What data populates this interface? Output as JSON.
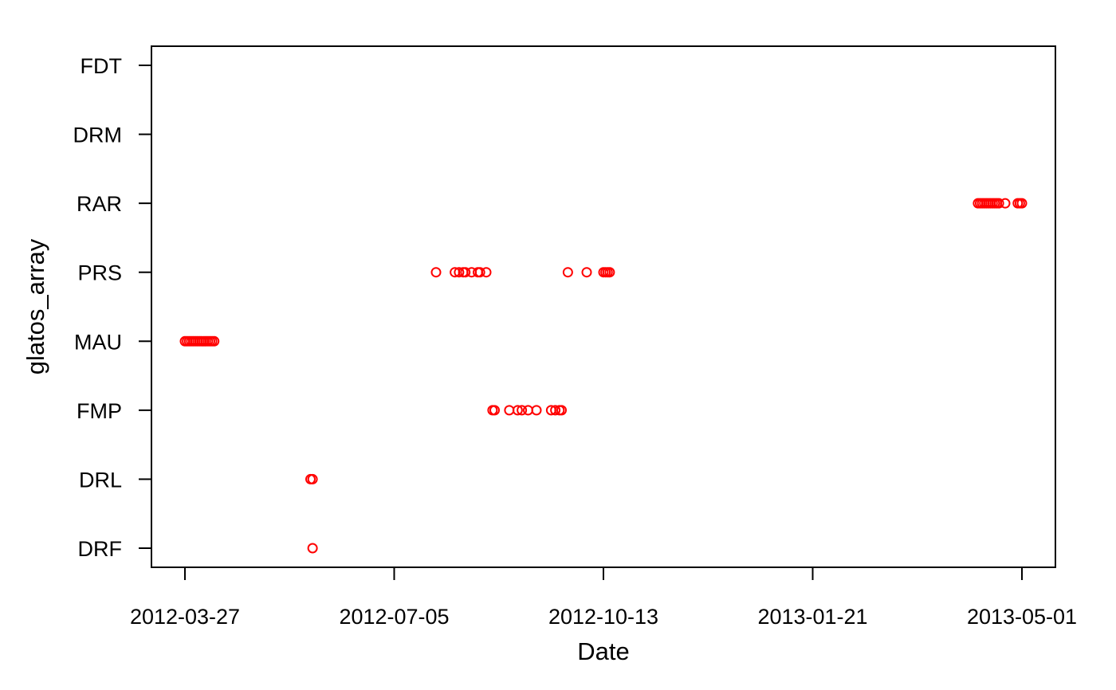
{
  "chart_data": {
    "type": "scatter",
    "xlabel": "Date",
    "ylabel": "glatos_array",
    "x_ticks": [
      "2012-03-27",
      "2012-07-05",
      "2012-10-13",
      "2013-01-21",
      "2013-05-01"
    ],
    "y_categories": [
      "DRF",
      "DRL",
      "FMP",
      "MAU",
      "PRS",
      "RAR",
      "DRM",
      "FDT"
    ],
    "xlim": [
      "2012-03-11",
      "2013-05-17"
    ],
    "marker_color": "#ff0000",
    "grid": false,
    "series": [
      {
        "points": [
          {
            "x": "2012-03-27",
            "y": "MAU"
          },
          {
            "x": "2012-03-28",
            "y": "MAU"
          },
          {
            "x": "2012-03-29",
            "y": "MAU"
          },
          {
            "x": "2012-03-30",
            "y": "MAU"
          },
          {
            "x": "2012-03-31",
            "y": "MAU"
          },
          {
            "x": "2012-04-01",
            "y": "MAU"
          },
          {
            "x": "2012-04-02",
            "y": "MAU"
          },
          {
            "x": "2012-04-03",
            "y": "MAU"
          },
          {
            "x": "2012-04-04",
            "y": "MAU"
          },
          {
            "x": "2012-04-05",
            "y": "MAU"
          },
          {
            "x": "2012-04-06",
            "y": "MAU"
          },
          {
            "x": "2012-04-07",
            "y": "MAU"
          },
          {
            "x": "2012-04-08",
            "y": "MAU"
          },
          {
            "x": "2012-04-09",
            "y": "MAU"
          },
          {
            "x": "2012-04-10",
            "y": "MAU"
          },
          {
            "x": "2012-05-26",
            "y": "DRL"
          },
          {
            "x": "2012-05-27",
            "y": "DRL"
          },
          {
            "x": "2012-05-27",
            "y": "DRF"
          },
          {
            "x": "2012-07-25",
            "y": "PRS"
          },
          {
            "x": "2012-08-03",
            "y": "PRS"
          },
          {
            "x": "2012-08-05",
            "y": "PRS"
          },
          {
            "x": "2012-08-07",
            "y": "PRS"
          },
          {
            "x": "2012-08-08",
            "y": "PRS"
          },
          {
            "x": "2012-08-11",
            "y": "PRS"
          },
          {
            "x": "2012-08-14",
            "y": "PRS"
          },
          {
            "x": "2012-08-15",
            "y": "PRS"
          },
          {
            "x": "2012-08-18",
            "y": "PRS"
          },
          {
            "x": "2012-08-21",
            "y": "FMP"
          },
          {
            "x": "2012-08-22",
            "y": "FMP"
          },
          {
            "x": "2012-08-29",
            "y": "FMP"
          },
          {
            "x": "2012-09-02",
            "y": "FMP"
          },
          {
            "x": "2012-09-04",
            "y": "FMP"
          },
          {
            "x": "2012-09-07",
            "y": "FMP"
          },
          {
            "x": "2012-09-11",
            "y": "FMP"
          },
          {
            "x": "2012-09-18",
            "y": "FMP"
          },
          {
            "x": "2012-09-20",
            "y": "FMP"
          },
          {
            "x": "2012-09-22",
            "y": "FMP"
          },
          {
            "x": "2012-09-23",
            "y": "FMP"
          },
          {
            "x": "2012-09-26",
            "y": "PRS"
          },
          {
            "x": "2012-10-05",
            "y": "PRS"
          },
          {
            "x": "2012-10-13",
            "y": "PRS"
          },
          {
            "x": "2012-10-14",
            "y": "PRS"
          },
          {
            "x": "2012-10-15",
            "y": "PRS"
          },
          {
            "x": "2012-10-16",
            "y": "PRS"
          },
          {
            "x": "2013-04-10",
            "y": "RAR"
          },
          {
            "x": "2013-04-11",
            "y": "RAR"
          },
          {
            "x": "2013-04-12",
            "y": "RAR"
          },
          {
            "x": "2013-04-13",
            "y": "RAR"
          },
          {
            "x": "2013-04-14",
            "y": "RAR"
          },
          {
            "x": "2013-04-15",
            "y": "RAR"
          },
          {
            "x": "2013-04-16",
            "y": "RAR"
          },
          {
            "x": "2013-04-17",
            "y": "RAR"
          },
          {
            "x": "2013-04-18",
            "y": "RAR"
          },
          {
            "x": "2013-04-19",
            "y": "RAR"
          },
          {
            "x": "2013-04-20",
            "y": "RAR"
          },
          {
            "x": "2013-04-23",
            "y": "RAR"
          },
          {
            "x": "2013-04-29",
            "y": "RAR"
          },
          {
            "x": "2013-04-30",
            "y": "RAR"
          },
          {
            "x": "2013-05-01",
            "y": "RAR"
          }
        ]
      }
    ]
  }
}
